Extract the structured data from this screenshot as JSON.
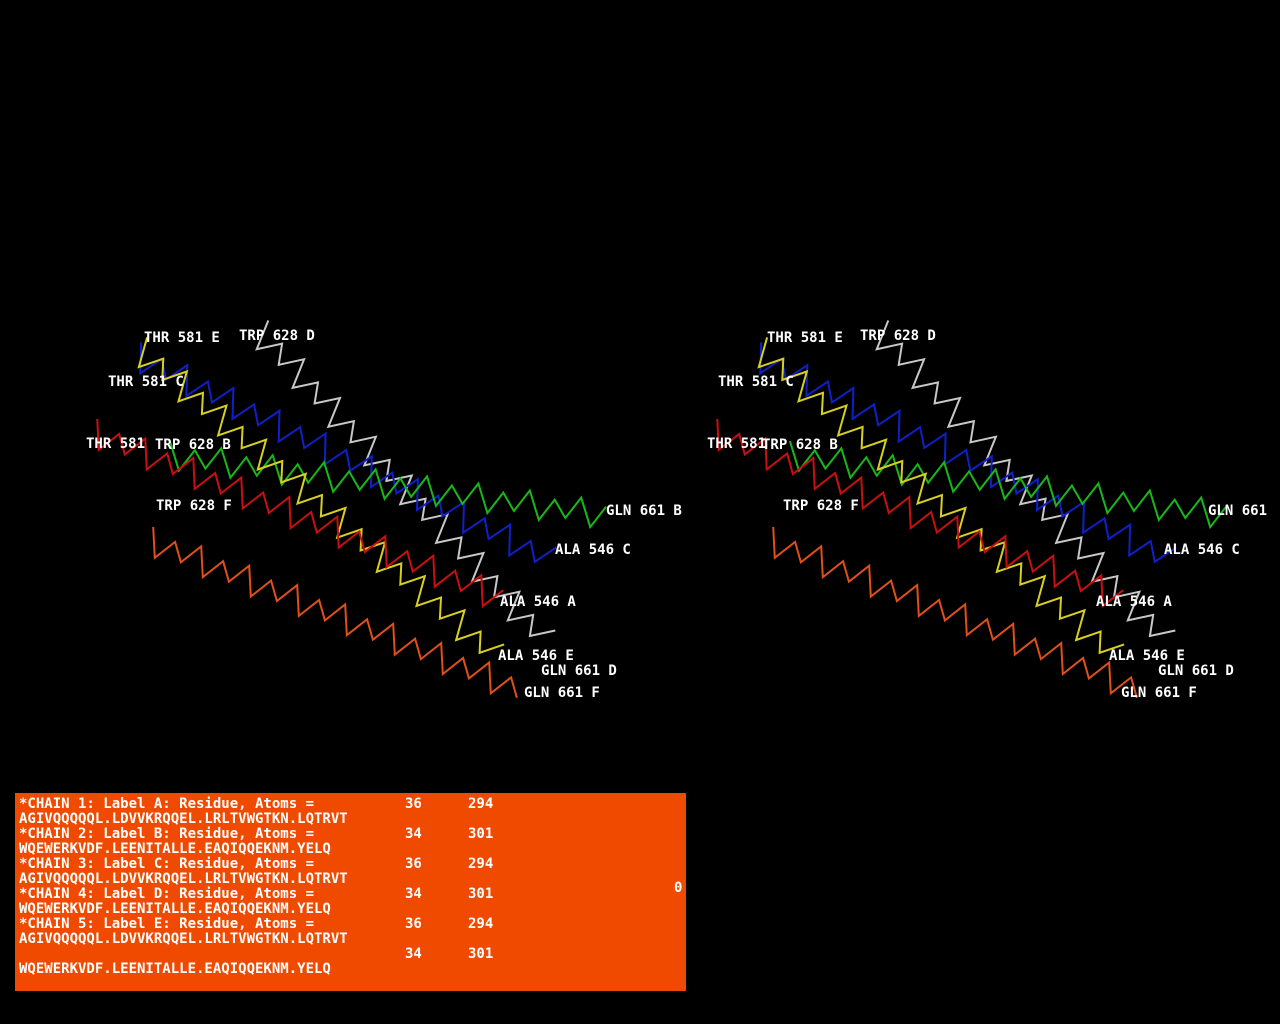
{
  "views": [
    {
      "labels": [
        "THR 581 E",
        "TRP 628 D",
        "THR 581 C",
        "THR 581",
        "TRP 628 B",
        "TRP 628 F",
        "GLN 661 B",
        "ALA 546 C",
        "ALA 546 A",
        "ALA 546 E",
        "GLN 661 D",
        "GLN 661 F"
      ]
    },
    {
      "labels": [
        "THR 581 E",
        "TRP 628 D",
        "THR 581 C",
        "THR 581",
        "TRP 628 B",
        "TRP 628 F",
        "GLN 661",
        "ALA 546 C",
        "ALA 546 A",
        "ALA 546 E",
        "GLN 661 D",
        "GLN 661 F"
      ]
    }
  ],
  "panel": {
    "chains": [
      {
        "header": "*CHAIN   1: Label A: Residue, Atoms =",
        "residues": 36,
        "atoms": 294,
        "color": "#ff1010",
        "sequence": "AGIVQQQQQL.LDVVKRQQEL.LRLTVWGTKN.LQTRVT"
      },
      {
        "header": "*CHAIN   2: Label B: Residue, Atoms =",
        "residues": 34,
        "atoms": 301,
        "color": "#20e020",
        "sequence": "WQEWERKVDF.LEENITALLE.EAQIQQEKNM.YELQ"
      },
      {
        "header": "*CHAIN   3: Label C: Residue, Atoms =",
        "residues": 36,
        "atoms": 294,
        "color": "#1010ff",
        "sequence": "AGIVQQQQQL.LDVVKRQQEL.LRLTVWGTKN.LQTRVT"
      },
      {
        "header": "*CHAIN   4: Label D: Residue, Atoms =",
        "residues": 34,
        "atoms": 301,
        "color": "#ffffff",
        "sequence": "WQEWERKVDF.LEENITALLE.EAQIQQEKNM.YELQ"
      },
      {
        "header": "*CHAIN   5: Label E: Residue, Atoms =",
        "residues": 36,
        "atoms": 294,
        "color": "#ffff20",
        "sequence": "AGIVQQQQQL.LDVVKRQQEL.LRLTVWGTKN.LQTRVT"
      },
      {
        "residues": 34,
        "atoms": 301,
        "color": "#f86018",
        "sequence": "WQEWERKVDF.LEENITALLE.EAQIQQEKNM.YELQ"
      }
    ],
    "corner_value": "0"
  }
}
